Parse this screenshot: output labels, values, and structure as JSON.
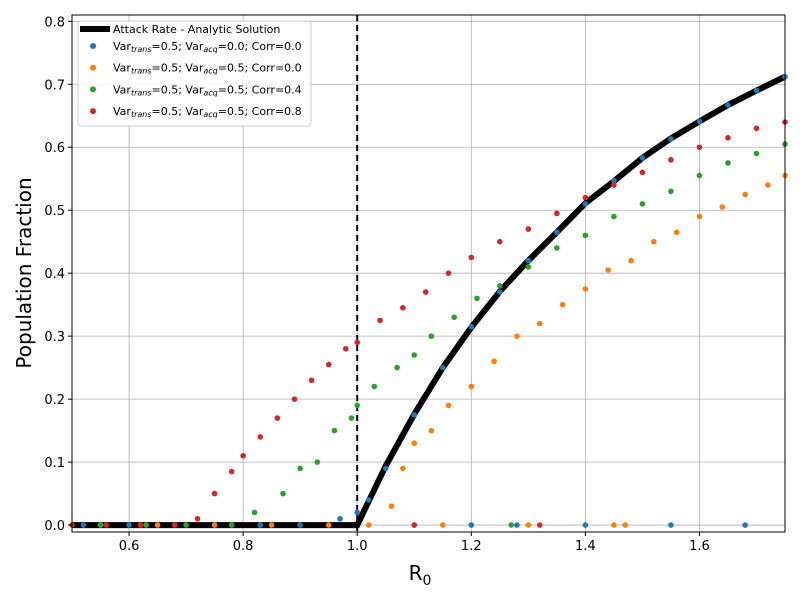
{
  "chart_data": {
    "type": "scatter",
    "xlabel": "R",
    "xlabel_sub": "0",
    "ylabel": "Population Fraction",
    "xlim": [
      0.5,
      1.75
    ],
    "ylim": [
      -0.011,
      0.81
    ],
    "xticks": [
      "0.6",
      "0.8",
      "1.0",
      "1.2",
      "1.4",
      "1.6"
    ],
    "xtick_values": [
      0.6,
      0.8,
      1.0,
      1.2,
      1.4,
      1.6
    ],
    "yticks": [
      "0.0",
      "0.1",
      "0.2",
      "0.3",
      "0.4",
      "0.5",
      "0.6",
      "0.7",
      "0.8"
    ],
    "ytick_values": [
      0,
      0.1,
      0.2,
      0.3,
      0.4,
      0.5,
      0.6,
      0.7,
      0.8
    ],
    "grid": true,
    "vline": 1.0,
    "legend_position": "top-left",
    "analytic": {
      "label": "Attack Rate - Analytic Solution",
      "color": "#000000",
      "x": [
        0.5,
        1.0,
        1.05,
        1.1,
        1.15,
        1.2,
        1.25,
        1.3,
        1.35,
        1.4,
        1.45,
        1.5,
        1.55,
        1.6,
        1.65,
        1.7,
        1.75
      ],
      "y": [
        0,
        0,
        0.094,
        0.176,
        0.25,
        0.314,
        0.371,
        0.42,
        0.465,
        0.511,
        0.546,
        0.583,
        0.614,
        0.641,
        0.667,
        0.69,
        0.712
      ]
    },
    "series": [
      {
        "name": "blue",
        "color": "#1f77b4",
        "label": {
          "a": "Var",
          "s1": "trans",
          "b": "=0.5; Var",
          "s2": "acq",
          "c": "=0.0; Corr=0.0"
        },
        "points": [
          [
            0.52,
            0
          ],
          [
            0.6,
            0
          ],
          [
            0.68,
            0
          ],
          [
            0.75,
            0
          ],
          [
            0.83,
            0
          ],
          [
            0.9,
            0
          ],
          [
            0.97,
            0.01
          ],
          [
            1.0,
            0.02
          ],
          [
            1.02,
            0.04
          ],
          [
            1.05,
            0.09
          ],
          [
            1.1,
            0.175
          ],
          [
            1.15,
            0.25
          ],
          [
            1.2,
            0.315
          ],
          [
            1.25,
            0.37
          ],
          [
            1.3,
            0.42
          ],
          [
            1.35,
            0.465
          ],
          [
            1.4,
            0.51
          ],
          [
            1.45,
            0.547
          ],
          [
            1.5,
            0.583
          ],
          [
            1.55,
            0.613
          ],
          [
            1.6,
            0.641
          ],
          [
            1.65,
            0.667
          ],
          [
            1.7,
            0.69
          ],
          [
            1.75,
            0.712
          ],
          [
            1.2,
            0
          ],
          [
            1.28,
            0
          ],
          [
            1.4,
            0
          ],
          [
            1.55,
            0
          ],
          [
            1.68,
            0
          ]
        ]
      },
      {
        "name": "orange",
        "color": "#ff7f0e",
        "label": {
          "a": "Var",
          "s1": "trans",
          "b": "=0.5; Var",
          "s2": "acq",
          "c": "=0.5; Corr=0.0"
        },
        "points": [
          [
            0.55,
            0
          ],
          [
            0.65,
            0
          ],
          [
            0.75,
            0
          ],
          [
            0.85,
            0
          ],
          [
            0.95,
            0
          ],
          [
            1.02,
            0
          ],
          [
            1.06,
            0.03
          ],
          [
            1.08,
            0.09
          ],
          [
            1.1,
            0.13
          ],
          [
            1.13,
            0.15
          ],
          [
            1.16,
            0.19
          ],
          [
            1.2,
            0.22
          ],
          [
            1.24,
            0.26
          ],
          [
            1.28,
            0.3
          ],
          [
            1.32,
            0.32
          ],
          [
            1.36,
            0.35
          ],
          [
            1.4,
            0.375
          ],
          [
            1.44,
            0.405
          ],
          [
            1.48,
            0.42
          ],
          [
            1.52,
            0.45
          ],
          [
            1.56,
            0.465
          ],
          [
            1.6,
            0.49
          ],
          [
            1.64,
            0.505
          ],
          [
            1.68,
            0.525
          ],
          [
            1.72,
            0.54
          ],
          [
            1.75,
            0.555
          ],
          [
            1.15,
            0
          ],
          [
            1.3,
            0
          ],
          [
            1.45,
            0
          ],
          [
            1.47,
            0
          ]
        ]
      },
      {
        "name": "green",
        "color": "#2ca02c",
        "label": {
          "a": "Var",
          "s1": "trans",
          "b": "=0.5; Var",
          "s2": "acq",
          "c": "=0.5; Corr=0.4"
        },
        "points": [
          [
            0.55,
            0
          ],
          [
            0.63,
            0
          ],
          [
            0.7,
            0
          ],
          [
            0.78,
            0
          ],
          [
            0.82,
            0.02
          ],
          [
            0.87,
            0.05
          ],
          [
            0.9,
            0.09
          ],
          [
            0.93,
            0.1
          ],
          [
            0.96,
            0.15
          ],
          [
            0.99,
            0.17
          ],
          [
            1.0,
            0.19
          ],
          [
            1.03,
            0.22
          ],
          [
            1.07,
            0.25
          ],
          [
            1.1,
            0.27
          ],
          [
            1.13,
            0.3
          ],
          [
            1.17,
            0.33
          ],
          [
            1.21,
            0.36
          ],
          [
            1.25,
            0.38
          ],
          [
            1.3,
            0.41
          ],
          [
            1.35,
            0.44
          ],
          [
            1.4,
            0.46
          ],
          [
            1.45,
            0.49
          ],
          [
            1.5,
            0.51
          ],
          [
            1.55,
            0.53
          ],
          [
            1.6,
            0.555
          ],
          [
            1.65,
            0.575
          ],
          [
            1.7,
            0.59
          ],
          [
            1.75,
            0.605
          ],
          [
            1.1,
            0
          ],
          [
            1.27,
            0
          ]
        ]
      },
      {
        "name": "red",
        "color": "#d62728",
        "label": {
          "a": "Var",
          "s1": "trans",
          "b": "=0.5; Var",
          "s2": "acq",
          "c": "=0.5; Corr=0.8"
        },
        "points": [
          [
            0.5,
            0
          ],
          [
            0.56,
            0
          ],
          [
            0.62,
            0
          ],
          [
            0.68,
            0
          ],
          [
            0.72,
            0.01
          ],
          [
            0.75,
            0.05
          ],
          [
            0.78,
            0.085
          ],
          [
            0.8,
            0.11
          ],
          [
            0.83,
            0.14
          ],
          [
            0.86,
            0.17
          ],
          [
            0.89,
            0.2
          ],
          [
            0.92,
            0.23
          ],
          [
            0.95,
            0.255
          ],
          [
            0.98,
            0.28
          ],
          [
            1.0,
            0.29
          ],
          [
            1.04,
            0.325
          ],
          [
            1.08,
            0.345
          ],
          [
            1.12,
            0.37
          ],
          [
            1.16,
            0.4
          ],
          [
            1.2,
            0.425
          ],
          [
            1.25,
            0.45
          ],
          [
            1.3,
            0.47
          ],
          [
            1.35,
            0.495
          ],
          [
            1.4,
            0.52
          ],
          [
            1.45,
            0.54
          ],
          [
            1.5,
            0.56
          ],
          [
            1.55,
            0.58
          ],
          [
            1.6,
            0.6
          ],
          [
            1.65,
            0.615
          ],
          [
            1.7,
            0.63
          ],
          [
            1.75,
            0.64
          ],
          [
            1.1,
            0
          ],
          [
            1.32,
            0
          ]
        ]
      }
    ]
  }
}
